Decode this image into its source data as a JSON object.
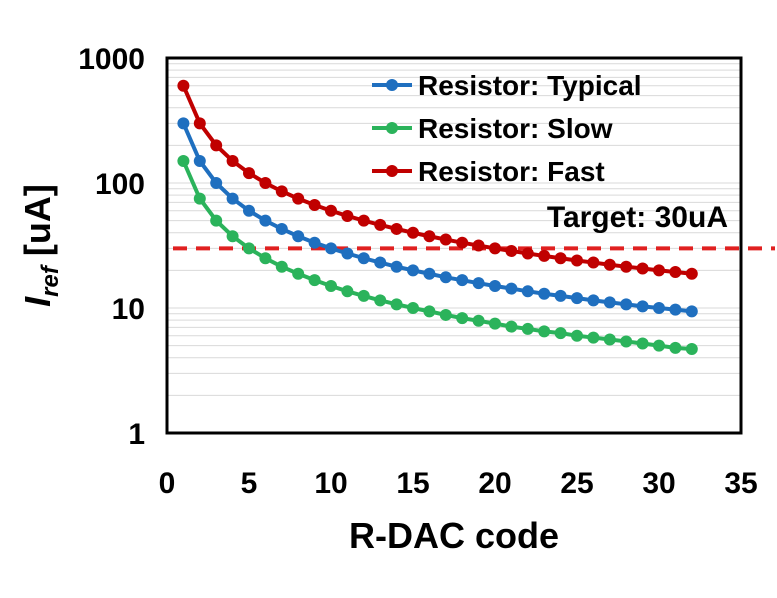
{
  "chart_data": {
    "type": "line",
    "xlabel": "R-DAC code",
    "ylabel_main": "I",
    "ylabel_sub": "ref",
    "ylabel_unit": " [uA]",
    "xlim": [
      0,
      35
    ],
    "ylim": [
      1,
      1000
    ],
    "yscale": "log",
    "grid": "minor horizontal gridlines",
    "legend_position": "top-right",
    "xticks": [
      0,
      5,
      10,
      15,
      20,
      25,
      30,
      35
    ],
    "xtick_labels": [
      "0",
      "5",
      "10",
      "15",
      "20",
      "25",
      "30",
      "35"
    ],
    "yticks": [
      1,
      10,
      100,
      1000
    ],
    "ytick_labels": [
      "1",
      "10",
      "100",
      "1000"
    ],
    "x": [
      1,
      2,
      3,
      4,
      5,
      6,
      7,
      8,
      9,
      10,
      11,
      12,
      13,
      14,
      15,
      16,
      17,
      18,
      19,
      20,
      21,
      22,
      23,
      24,
      25,
      26,
      27,
      28,
      29,
      30,
      31,
      32
    ],
    "series": [
      {
        "name": "Resistor: Typical",
        "color": "#1f6fbf",
        "values": [
          300,
          150,
          100,
          75,
          60,
          50,
          42.9,
          37.5,
          33.3,
          30,
          27.3,
          25,
          23.1,
          21.4,
          20,
          18.8,
          17.6,
          16.7,
          15.8,
          15,
          14.3,
          13.6,
          13,
          12.5,
          12,
          11.5,
          11.1,
          10.7,
          10.3,
          10,
          9.7,
          9.4
        ]
      },
      {
        "name": "Resistor: Slow",
        "color": "#2bb35b",
        "values": [
          150,
          75,
          50,
          37.5,
          30,
          25,
          21.4,
          18.8,
          16.7,
          15,
          13.6,
          12.5,
          11.5,
          10.7,
          10,
          9.4,
          8.8,
          8.3,
          7.9,
          7.5,
          7.1,
          6.8,
          6.5,
          6.3,
          6,
          5.8,
          5.6,
          5.4,
          5.2,
          5,
          4.8,
          4.7
        ]
      },
      {
        "name": "Resistor: Fast",
        "color": "#c00000",
        "values": [
          600,
          300,
          200,
          150,
          120,
          100,
          85.7,
          75,
          66.7,
          60,
          54.5,
          50,
          46.2,
          42.9,
          40,
          37.5,
          35.3,
          33.3,
          31.6,
          30,
          28.6,
          27.3,
          26.1,
          25,
          24,
          23.1,
          22.2,
          21.4,
          20.7,
          20,
          19.4,
          18.8
        ]
      }
    ],
    "target": {
      "label": "Target: 30uA",
      "value": 30,
      "color": "#e02020",
      "style": "dashed"
    }
  }
}
